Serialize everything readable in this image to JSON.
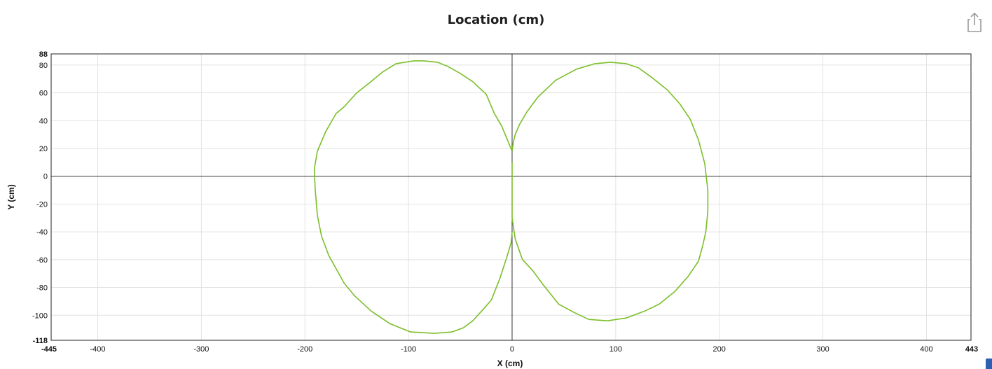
{
  "header": {
    "share_icon": "share-icon"
  },
  "chart_data": {
    "type": "line",
    "title": "Location (cm)",
    "xlabel": "X (cm)",
    "ylabel": "Y (cm)",
    "xlim": [
      -445,
      443
    ],
    "ylim": [
      -118,
      88
    ],
    "x_ticks": [
      -400,
      -300,
      -200,
      -100,
      0,
      100,
      200,
      300,
      400
    ],
    "y_ticks": [
      -100,
      -80,
      -60,
      -40,
      -20,
      0,
      20,
      40,
      60,
      80
    ],
    "x_bound_labels": [
      "-445",
      "443"
    ],
    "y_bound_labels": [
      "-118",
      "88"
    ],
    "grid": true,
    "zero_lines": true,
    "series": [
      {
        "color": "#7bbf2a",
        "x": [
          0,
          -10,
          -17,
          -25,
          -38,
          -50,
          -62,
          -72,
          -85,
          -95,
          -112,
          -125,
          -138,
          -150,
          -162,
          -170,
          -180,
          -188,
          -191,
          -190,
          -188,
          -184,
          -177,
          -171,
          -162,
          -152,
          -136,
          -118,
          -98,
          -75,
          -58,
          -47,
          -38,
          -27,
          -20,
          -12,
          -5,
          -1,
          0
        ],
        "y": [
          18,
          36,
          45,
          59,
          68,
          74,
          79,
          82,
          83,
          83,
          81,
          75,
          67,
          60,
          50,
          45,
          32,
          18,
          5,
          -10,
          -28,
          -43,
          -57,
          -65,
          -77,
          -86,
          -97,
          -106,
          -112,
          -113,
          -112,
          -109,
          -104,
          -95,
          -89,
          -74,
          -58,
          -48,
          -40
        ]
      },
      {
        "color": "#7bbf2a",
        "x": [
          0,
          1,
          3,
          7,
          14,
          25,
          42,
          62,
          80,
          95,
          110,
          122,
          135,
          150,
          162,
          172,
          180,
          186,
          189,
          189,
          187,
          184,
          180,
          170,
          157,
          142,
          128,
          110,
          92,
          74,
          60,
          45,
          30,
          20,
          10,
          3,
          0,
          0,
          0
        ],
        "y": [
          18,
          24,
          30,
          37,
          46,
          57,
          69,
          77,
          81,
          82,
          81,
          78,
          71,
          62,
          52,
          41,
          26,
          9,
          -10,
          -25,
          -40,
          -50,
          -61,
          -72,
          -83,
          -92,
          -97,
          -102,
          -104,
          -103,
          -98,
          -92,
          -78,
          -68,
          -60,
          -45,
          -30,
          -10,
          10
        ]
      }
    ]
  }
}
